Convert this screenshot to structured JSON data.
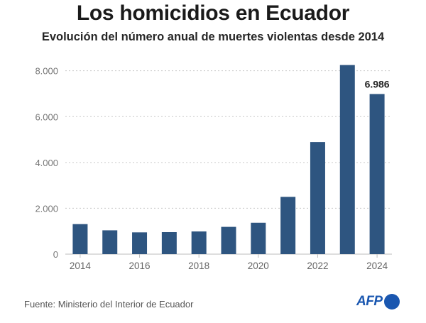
{
  "chart_data": {
    "type": "bar",
    "title": "Los homicidios en Ecuador",
    "subtitle": "Evolución del número anual de muertes violentas desde 2014",
    "x": [
      2014,
      2015,
      2016,
      2017,
      2018,
      2019,
      2020,
      2021,
      2022,
      2023,
      2024
    ],
    "x_tick_labels": [
      "2014",
      "2016",
      "2018",
      "2020",
      "2022",
      "2024"
    ],
    "values": [
      1310,
      1040,
      950,
      960,
      990,
      1190,
      1370,
      2500,
      4890,
      8250,
      6986
    ],
    "value_labels": [
      {
        "x": 2024,
        "text": "6.986"
      }
    ],
    "y_ticks": [
      0,
      2000,
      4000,
      6000,
      8000
    ],
    "y_tick_labels": [
      "0",
      "2.000",
      "4.000",
      "6.000",
      "8.000"
    ],
    "ylim": [
      0,
      8300
    ],
    "xlabel": "",
    "ylabel": "",
    "bar_color": "#2e5580",
    "grid": true
  },
  "source": "Fuente: Ministerio del Interior de Ecuador",
  "logo": {
    "text": "AFP",
    "color": "#1a57b0"
  }
}
